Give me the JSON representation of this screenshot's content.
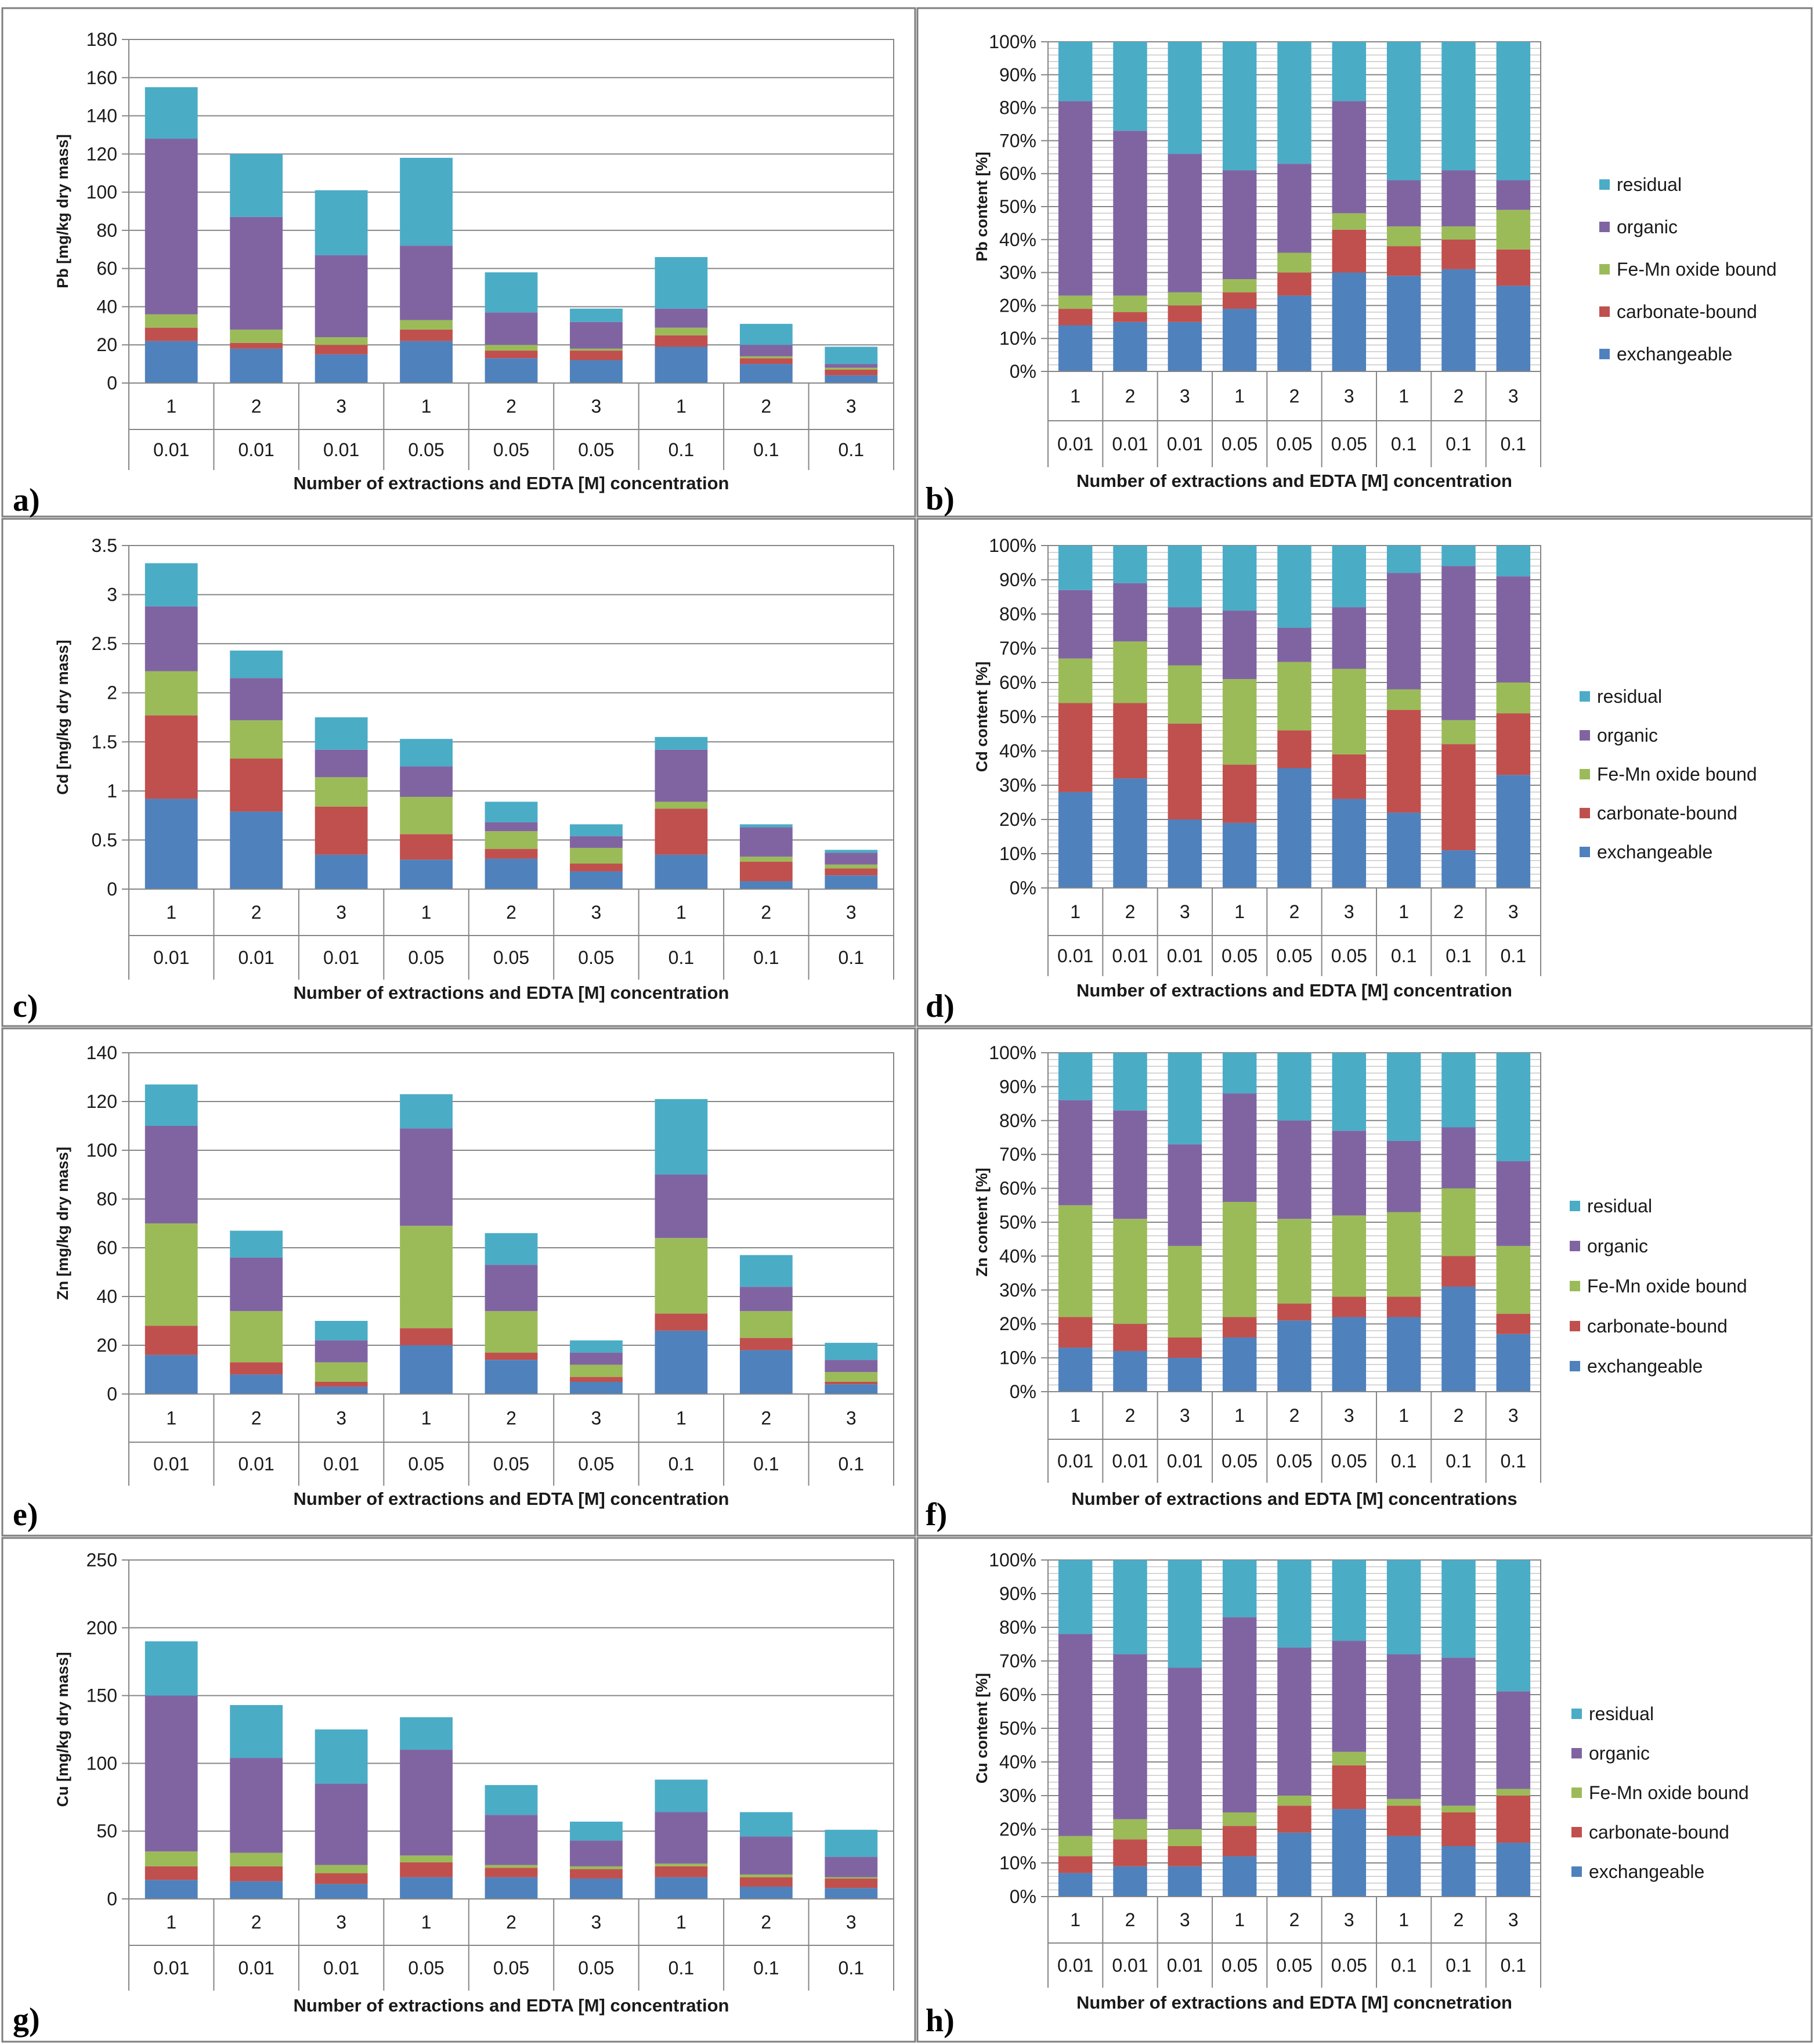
{
  "figure": {
    "colors": {
      "exchangeable": "#4f81bd",
      "carbonate-bound": "#c0504d",
      "Fe-Mn oxide bound": "#9bbb59",
      "organic": "#8064a2",
      "residual": "#4bacc6"
    }
  },
  "chart_data": [
    {
      "id": "a",
      "type": "bar",
      "stacked": true,
      "panel_label": "a)",
      "ylabel": "Pb [mg/kg dry mass]",
      "xlabel": "Number of extractions and EDTA [M] concentration",
      "ylim": [
        0,
        180
      ],
      "ytick_step": 20,
      "ytick_format": "int",
      "categories_row1": [
        "1",
        "2",
        "3",
        "1",
        "2",
        "3",
        "1",
        "2",
        "3"
      ],
      "categories_row2": [
        "0.01",
        "0.01",
        "0.01",
        "0.05",
        "0.05",
        "0.05",
        "0.1",
        "0.1",
        "0.1"
      ],
      "series": [
        {
          "name": "exchangeable",
          "values": [
            22,
            18,
            15,
            22,
            13,
            12,
            19,
            10,
            4
          ]
        },
        {
          "name": "carbonate-bound",
          "values": [
            7,
            3,
            5,
            6,
            4,
            5,
            6,
            3,
            3
          ]
        },
        {
          "name": "Fe-Mn oxide bound",
          "values": [
            7,
            7,
            4,
            5,
            3,
            1,
            4,
            1,
            1
          ]
        },
        {
          "name": "organic",
          "values": [
            92,
            59,
            43,
            39,
            17,
            14,
            10,
            6,
            2
          ]
        },
        {
          "name": "residual",
          "values": [
            27,
            33,
            34,
            46,
            21,
            7,
            27,
            11,
            9
          ]
        }
      ]
    },
    {
      "id": "b",
      "type": "bar",
      "stacked": true,
      "percent": true,
      "panel_label": "b)",
      "ylabel": "Pb content [%]",
      "xlabel": "Number of extractions and EDTA [M] concentration",
      "ylim": [
        0,
        100
      ],
      "ytick_step": 10,
      "ytick_format": "pct",
      "categories_row1": [
        "1",
        "2",
        "3",
        "1",
        "2",
        "3",
        "1",
        "2",
        "3"
      ],
      "categories_row2": [
        "0.01",
        "0.01",
        "0.01",
        "0.05",
        "0.05",
        "0.05",
        "0.1",
        "0.1",
        "0.1"
      ],
      "legend": [
        "residual",
        "organic",
        "Fe-Mn oxide bound",
        "carbonate-bound",
        "exchangeable"
      ],
      "series": [
        {
          "name": "exchangeable",
          "values": [
            14,
            15,
            15,
            19,
            23,
            30,
            29,
            31,
            26
          ]
        },
        {
          "name": "carbonate-bound",
          "values": [
            5,
            3,
            5,
            5,
            7,
            13,
            9,
            9,
            11
          ]
        },
        {
          "name": "Fe-Mn oxide bound",
          "values": [
            4,
            5,
            4,
            4,
            6,
            5,
            6,
            4,
            12
          ]
        },
        {
          "name": "organic",
          "values": [
            59,
            50,
            42,
            33,
            27,
            34,
            14,
            17,
            9
          ]
        },
        {
          "name": "residual",
          "values": [
            18,
            27,
            34,
            39,
            37,
            18,
            42,
            39,
            42
          ]
        }
      ]
    },
    {
      "id": "c",
      "type": "bar",
      "stacked": true,
      "panel_label": "c)",
      "ylabel": "Cd [mg/kg dry mass]",
      "xlabel": "Number of extractions and EDTA [M] concentration",
      "ylim": [
        0,
        3.5
      ],
      "ytick_step": 0.5,
      "ytick_format": "dec",
      "categories_row1": [
        "1",
        "2",
        "3",
        "1",
        "2",
        "3",
        "1",
        "2",
        "3"
      ],
      "categories_row2": [
        "0.01",
        "0.01",
        "0.01",
        "0.05",
        "0.05",
        "0.05",
        "0.1",
        "0.1",
        "0.1"
      ],
      "series": [
        {
          "name": "exchangeable",
          "values": [
            0.92,
            0.79,
            0.35,
            0.3,
            0.31,
            0.18,
            0.35,
            0.08,
            0.14
          ]
        },
        {
          "name": "carbonate-bound",
          "values": [
            0.85,
            0.54,
            0.49,
            0.26,
            0.1,
            0.08,
            0.47,
            0.2,
            0.07
          ]
        },
        {
          "name": "Fe-Mn oxide bound",
          "values": [
            0.45,
            0.39,
            0.3,
            0.38,
            0.18,
            0.16,
            0.07,
            0.05,
            0.04
          ]
        },
        {
          "name": "organic",
          "values": [
            0.66,
            0.43,
            0.28,
            0.31,
            0.09,
            0.12,
            0.53,
            0.3,
            0.12
          ]
        },
        {
          "name": "residual",
          "values": [
            0.44,
            0.28,
            0.33,
            0.28,
            0.21,
            0.12,
            0.13,
            0.03,
            0.03
          ]
        }
      ]
    },
    {
      "id": "d",
      "type": "bar",
      "stacked": true,
      "percent": true,
      "panel_label": "d)",
      "ylabel": "Cd content [%]",
      "xlabel": "Number of extractions and EDTA [M] concentration",
      "ylim": [
        0,
        100
      ],
      "ytick_step": 10,
      "ytick_format": "pct",
      "categories_row1": [
        "1",
        "2",
        "3",
        "1",
        "2",
        "3",
        "1",
        "2",
        "3"
      ],
      "categories_row2": [
        "0.01",
        "0.01",
        "0.01",
        "0.05",
        "0.05",
        "0.05",
        "0.1",
        "0.1",
        "0.1"
      ],
      "legend": [
        "residual",
        "organic",
        "Fe-Mn oxide bound",
        "carbonate-bound",
        "exchangeable"
      ],
      "series": [
        {
          "name": "exchangeable",
          "values": [
            28,
            32,
            20,
            19,
            35,
            26,
            22,
            11,
            33
          ]
        },
        {
          "name": "carbonate-bound",
          "values": [
            26,
            22,
            28,
            17,
            11,
            13,
            30,
            31,
            18
          ]
        },
        {
          "name": "Fe-Mn oxide bound",
          "values": [
            13,
            18,
            17,
            25,
            20,
            25,
            6,
            7,
            9
          ]
        },
        {
          "name": "organic",
          "values": [
            20,
            17,
            17,
            20,
            10,
            18,
            34,
            45,
            31
          ]
        },
        {
          "name": "residual",
          "values": [
            13,
            11,
            18,
            19,
            24,
            18,
            8,
            6,
            9
          ]
        }
      ]
    },
    {
      "id": "e",
      "type": "bar",
      "stacked": true,
      "panel_label": "e)",
      "ylabel": "Zn [mg/kg dry mass]",
      "xlabel": "Number of extractions and EDTA [M] concentration",
      "ylim": [
        0,
        140
      ],
      "ytick_step": 20,
      "ytick_format": "int",
      "categories_row1": [
        "1",
        "2",
        "3",
        "1",
        "2",
        "3",
        "1",
        "2",
        "3"
      ],
      "categories_row2": [
        "0.01",
        "0.01",
        "0.01",
        "0.05",
        "0.05",
        "0.05",
        "0.1",
        "0.1",
        "0.1"
      ],
      "series": [
        {
          "name": "exchangeable",
          "values": [
            16,
            8,
            3,
            20,
            14,
            5,
            26,
            18,
            4
          ]
        },
        {
          "name": "carbonate-bound",
          "values": [
            12,
            5,
            2,
            7,
            3,
            2,
            7,
            5,
            1
          ]
        },
        {
          "name": "Fe-Mn oxide bound",
          "values": [
            42,
            21,
            8,
            42,
            17,
            5,
            31,
            11,
            4
          ]
        },
        {
          "name": "organic",
          "values": [
            40,
            22,
            9,
            40,
            19,
            5,
            26,
            10,
            5
          ]
        },
        {
          "name": "residual",
          "values": [
            17,
            11,
            8,
            14,
            13,
            5,
            31,
            13,
            7
          ]
        }
      ]
    },
    {
      "id": "f",
      "type": "bar",
      "stacked": true,
      "percent": true,
      "panel_label": "f)",
      "ylabel": "Zn content [%]",
      "xlabel": "Number of extractions and EDTA [M] concentrations",
      "ylim": [
        0,
        100
      ],
      "ytick_step": 10,
      "ytick_format": "pct",
      "categories_row1": [
        "1",
        "2",
        "3",
        "1",
        "2",
        "3",
        "1",
        "2",
        "3"
      ],
      "categories_row2": [
        "0.01",
        "0.01",
        "0.01",
        "0.05",
        "0.05",
        "0.05",
        "0.1",
        "0.1",
        "0.1"
      ],
      "legend": [
        "residual",
        "organic",
        "Fe-Mn oxide bound",
        "carbonate-bound",
        "exchangeable"
      ],
      "series": [
        {
          "name": "exchangeable",
          "values": [
            13,
            12,
            10,
            16,
            21,
            22,
            22,
            31,
            17
          ]
        },
        {
          "name": "carbonate-bound",
          "values": [
            9,
            8,
            6,
            6,
            5,
            6,
            6,
            9,
            6
          ]
        },
        {
          "name": "Fe-Mn oxide bound",
          "values": [
            33,
            31,
            27,
            34,
            25,
            24,
            25,
            20,
            20
          ]
        },
        {
          "name": "organic",
          "values": [
            31,
            32,
            30,
            32,
            29,
            25,
            21,
            18,
            25
          ]
        },
        {
          "name": "residual",
          "values": [
            14,
            17,
            27,
            12,
            20,
            23,
            26,
            22,
            32
          ]
        }
      ]
    },
    {
      "id": "g",
      "type": "bar",
      "stacked": true,
      "panel_label": "g)",
      "ylabel": "Cu [mg/kg dry mass]",
      "xlabel": "Number of extractions and EDTA [M] concentration",
      "ylim": [
        0,
        250
      ],
      "ytick_step": 50,
      "ytick_format": "int",
      "categories_row1": [
        "1",
        "2",
        "3",
        "1",
        "2",
        "3",
        "1",
        "2",
        "3"
      ],
      "categories_row2": [
        "0.01",
        "0.01",
        "0.01",
        "0.05",
        "0.05",
        "0.05",
        "0.1",
        "0.1",
        "0.1"
      ],
      "series": [
        {
          "name": "exchangeable",
          "values": [
            14,
            13,
            11,
            16,
            16,
            15,
            16,
            9,
            8
          ]
        },
        {
          "name": "carbonate-bound",
          "values": [
            10,
            11,
            8,
            11,
            7,
            7,
            8,
            7,
            7
          ]
        },
        {
          "name": "Fe-Mn oxide bound",
          "values": [
            11,
            10,
            6,
            5,
            2,
            2,
            2,
            2,
            1
          ]
        },
        {
          "name": "organic",
          "values": [
            115,
            70,
            60,
            78,
            37,
            19,
            38,
            28,
            15
          ]
        },
        {
          "name": "residual",
          "values": [
            40,
            39,
            40,
            24,
            22,
            14,
            24,
            18,
            20
          ]
        }
      ]
    },
    {
      "id": "h",
      "type": "bar",
      "stacked": true,
      "percent": true,
      "panel_label": "h)",
      "ylabel": "Cu content [%]",
      "xlabel": "Number of extractions and EDTA [M] concnetration",
      "ylim": [
        0,
        100
      ],
      "ytick_step": 10,
      "ytick_format": "pct",
      "categories_row1": [
        "1",
        "2",
        "3",
        "1",
        "2",
        "3",
        "1",
        "2",
        "3"
      ],
      "categories_row2": [
        "0.01",
        "0.01",
        "0.01",
        "0.05",
        "0.05",
        "0.05",
        "0.1",
        "0.1",
        "0.1"
      ],
      "legend": [
        "residual",
        "organic",
        "Fe-Mn oxide bound",
        "carbonate-bound",
        "exchangeable"
      ],
      "series": [
        {
          "name": "exchangeable",
          "values": [
            7,
            9,
            9,
            12,
            19,
            26,
            18,
            15,
            16
          ]
        },
        {
          "name": "carbonate-bound",
          "values": [
            5,
            8,
            6,
            9,
            8,
            13,
            9,
            10,
            14
          ]
        },
        {
          "name": "Fe-Mn oxide bound",
          "values": [
            6,
            6,
            5,
            4,
            3,
            4,
            2,
            2,
            2
          ]
        },
        {
          "name": "organic",
          "values": [
            60,
            49,
            48,
            58,
            44,
            33,
            43,
            44,
            29
          ]
        },
        {
          "name": "residual",
          "values": [
            22,
            28,
            32,
            17,
            26,
            24,
            28,
            29,
            39
          ]
        }
      ]
    }
  ]
}
